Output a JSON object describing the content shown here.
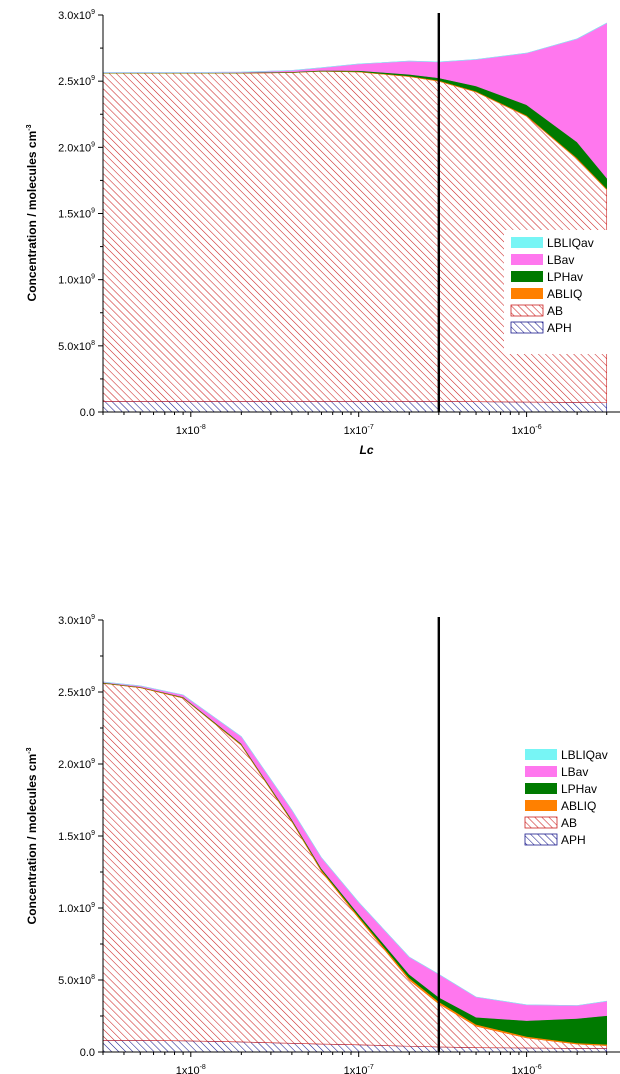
{
  "chart_data": [
    {
      "type": "area",
      "stacking": "stacked",
      "x_scale": "log",
      "xlabel": "Lc",
      "ylabel": "Concentration / molecules cm",
      "ylabel_exponent": "-3",
      "ylim": [
        0,
        3000000000
      ],
      "x_ticks": [
        {
          "value": 1e-08,
          "mantissa": "1x10",
          "exponent": "-8"
        },
        {
          "value": 1e-07,
          "mantissa": "1x10",
          "exponent": "-7"
        },
        {
          "value": 1e-06,
          "mantissa": "1x10",
          "exponent": "-6"
        }
      ],
      "y_ticks": [
        {
          "value": 0,
          "mantissa": "0.0",
          "exponent": ""
        },
        {
          "value": 500000000,
          "mantissa": "5.0x10",
          "exponent": "8"
        },
        {
          "value": 1000000000,
          "mantissa": "1.0x10",
          "exponent": "9"
        },
        {
          "value": 1500000000,
          "mantissa": "1.5x10",
          "exponent": "9"
        },
        {
          "value": 2000000000,
          "mantissa": "2.0x10",
          "exponent": "9"
        },
        {
          "value": 2500000000,
          "mantissa": "2.5x10",
          "exponent": "9"
        },
        {
          "value": 3000000000,
          "mantissa": "3.0x10",
          "exponent": "9"
        }
      ],
      "vertical_line_x": 3e-07,
      "legend_position": "right",
      "x": [
        3e-09,
        1e-08,
        2e-08,
        4e-08,
        6e-08,
        1e-07,
        2e-07,
        3e-07,
        5e-07,
        1e-06,
        2e-06,
        3e-06
      ],
      "series": [
        {
          "name": "APH",
          "pattern": "hatch",
          "color": "#1a1a8c",
          "values": [
            80000000.0,
            80000000.0,
            80000000.0,
            80000000.0,
            80000000.0,
            80000000.0,
            80000000.0,
            80000000.0,
            78000000.0,
            75000000.0,
            72000000.0,
            70000000.0
          ]
        },
        {
          "name": "AB",
          "pattern": "hatch",
          "color": "#cc2222",
          "values": [
            2480000000.0,
            2480000000.0,
            2480000000.0,
            2485000000.0,
            2495000000.0,
            2490000000.0,
            2455000000.0,
            2420000000.0,
            2340000000.0,
            2160000000.0,
            1840000000.0,
            1610000000.0
          ]
        },
        {
          "name": "ABLIQ",
          "pattern": "solid",
          "color": "#ff8000",
          "values": [
            2000000.0,
            2000000.0,
            2000000.0,
            2000000.0,
            2000000.0,
            3000000.0,
            4000000.0,
            5000000.0,
            6000000.0,
            7000000.0,
            8000000.0,
            9000000.0
          ]
        },
        {
          "name": "LPHav",
          "pattern": "solid",
          "color": "#007a00",
          "values": [
            2000000.0,
            2000000.0,
            3000000.0,
            4000000.0,
            5000000.0,
            7000000.0,
            13000000.0,
            20000000.0,
            40000000.0,
            80000000.0,
            120000000.0,
            80000000.0
          ]
        },
        {
          "name": "LBav",
          "pattern": "solid",
          "color": "#ff77ee",
          "values": [
            2000000.0,
            2000000.0,
            4000000.0,
            10000000.0,
            20000000.0,
            50000000.0,
            100000000.0,
            120000000.0,
            200000000.0,
            390000000.0,
            780000000.0,
            1170000000.0
          ]
        },
        {
          "name": "LBLIQav",
          "pattern": "solid",
          "color": "#77f5f5",
          "values": [
            0,
            0,
            0,
            0,
            0,
            0,
            0,
            0,
            0,
            0,
            0,
            0
          ]
        }
      ]
    },
    {
      "type": "area",
      "stacking": "stacked",
      "x_scale": "log",
      "xlabel": "Lc",
      "ylabel": "Concentration / molecules cm",
      "ylabel_exponent": "-3",
      "ylim": [
        0,
        3000000000
      ],
      "x_ticks": [
        {
          "value": 1e-08,
          "mantissa": "1x10",
          "exponent": "-8"
        },
        {
          "value": 1e-07,
          "mantissa": "1x10",
          "exponent": "-7"
        },
        {
          "value": 1e-06,
          "mantissa": "1x10",
          "exponent": "-6"
        }
      ],
      "y_ticks": [
        {
          "value": 0,
          "mantissa": "0.0",
          "exponent": ""
        },
        {
          "value": 500000000,
          "mantissa": "5.0x10",
          "exponent": "8"
        },
        {
          "value": 1000000000,
          "mantissa": "1.0x10",
          "exponent": "9"
        },
        {
          "value": 1500000000,
          "mantissa": "1.5x10",
          "exponent": "9"
        },
        {
          "value": 2000000000,
          "mantissa": "2.0x10",
          "exponent": "9"
        },
        {
          "value": 2500000000,
          "mantissa": "2.5x10",
          "exponent": "9"
        },
        {
          "value": 3000000000,
          "mantissa": "3.0x10",
          "exponent": "9"
        }
      ],
      "vertical_line_x": 3e-07,
      "legend_position": "right",
      "x": [
        3e-09,
        5e-09,
        9e-09,
        2e-08,
        4e-08,
        6e-08,
        1e-07,
        2e-07,
        3e-07,
        5e-07,
        1e-06,
        2e-06,
        3e-06
      ],
      "series": [
        {
          "name": "APH",
          "pattern": "hatch",
          "color": "#1a1a8c",
          "values": [
            80000000.0,
            80000000.0,
            78000000.0,
            70000000.0,
            60000000.0,
            55000000.0,
            50000000.0,
            40000000.0,
            35000000.0,
            30000000.0,
            28000000.0,
            25000000.0,
            25000000.0
          ]
        },
        {
          "name": "AB",
          "pattern": "hatch",
          "color": "#cc2222",
          "values": [
            2480000000.0,
            2450000000.0,
            2380000000.0,
            2060000000.0,
            1540000000.0,
            1200000000.0,
            880000000.0,
            460000000.0,
            300000000.0,
            150000000.0,
            70000000.0,
            30000000.0,
            20000000.0
          ]
        },
        {
          "name": "ABLIQ",
          "pattern": "solid",
          "color": "#ff8000",
          "values": [
            3000000.0,
            3000000.0,
            4000000.0,
            6000000.0,
            8000000.0,
            10000000.0,
            12000000.0,
            15000000.0,
            15000000.0,
            12000000.0,
            10000000.0,
            8000000.0,
            8000000.0
          ]
        },
        {
          "name": "LPHav",
          "pattern": "solid",
          "color": "#007a00",
          "values": [
            3000000.0,
            3000000.0,
            4000000.0,
            6000000.0,
            8000000.0,
            10000000.0,
            15000000.0,
            25000000.0,
            30000000.0,
            50000000.0,
            110000000.0,
            170000000.0,
            200000000.0
          ]
        },
        {
          "name": "LBav",
          "pattern": "solid",
          "color": "#ff77ee",
          "values": [
            4000000.0,
            7000000.0,
            14000000.0,
            48000000.0,
            65000000.0,
            75000000.0,
            83000000.0,
            120000000.0,
            160000000.0,
            140000000.0,
            110000000.0,
            90000000.0,
            100000000.0
          ]
        },
        {
          "name": "LBLIQav",
          "pattern": "solid",
          "color": "#77f5f5",
          "values": [
            0,
            0,
            0,
            0,
            0,
            0,
            0,
            0,
            0,
            0,
            0,
            0,
            0
          ]
        }
      ]
    }
  ]
}
